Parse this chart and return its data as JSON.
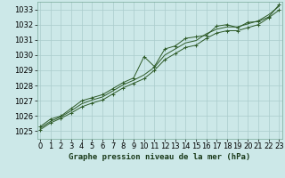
{
  "title": "Graphe pression niveau de la mer (hPa)",
  "xlabel_ticks": [
    0,
    1,
    2,
    3,
    4,
    5,
    6,
    7,
    8,
    9,
    10,
    11,
    12,
    13,
    14,
    15,
    16,
    17,
    18,
    19,
    20,
    21,
    22,
    23
  ],
  "ylim": [
    1024.5,
    1033.5
  ],
  "yticks": [
    1025,
    1026,
    1027,
    1028,
    1029,
    1030,
    1031,
    1032,
    1033
  ],
  "xlim": [
    -0.3,
    23.3
  ],
  "background_color": "#cce8e8",
  "grid_color": "#aacccc",
  "line_color": "#2d5a27",
  "marker_color": "#2d5a27",
  "series1_x": [
    0,
    1,
    2,
    3,
    4,
    5,
    6,
    7,
    8,
    9,
    10,
    11,
    12,
    13,
    14,
    15,
    16,
    17,
    18,
    19,
    20,
    21,
    22,
    23
  ],
  "series1": [
    1025.3,
    1025.8,
    1026.0,
    1026.5,
    1027.0,
    1027.2,
    1027.4,
    1027.8,
    1028.2,
    1028.5,
    1029.9,
    1029.25,
    1030.4,
    1030.6,
    1031.1,
    1031.2,
    1031.3,
    1031.9,
    1032.0,
    1031.8,
    1032.15,
    1032.2,
    1032.5,
    1033.3
  ],
  "series2": [
    1025.1,
    1025.55,
    1025.85,
    1026.2,
    1026.6,
    1026.85,
    1027.05,
    1027.45,
    1027.85,
    1028.15,
    1028.45,
    1029.0,
    1029.7,
    1030.1,
    1030.5,
    1030.65,
    1031.1,
    1031.45,
    1031.6,
    1031.6,
    1031.8,
    1032.0,
    1032.45,
    1032.95
  ],
  "series3": [
    1025.2,
    1025.65,
    1025.95,
    1026.35,
    1026.8,
    1027.05,
    1027.25,
    1027.65,
    1028.05,
    1028.35,
    1028.7,
    1029.2,
    1030.0,
    1030.4,
    1030.8,
    1030.95,
    1031.4,
    1031.7,
    1031.85,
    1031.85,
    1032.05,
    1032.25,
    1032.65,
    1033.2
  ],
  "tick_fontsize": 6,
  "title_fontsize": 6.5
}
